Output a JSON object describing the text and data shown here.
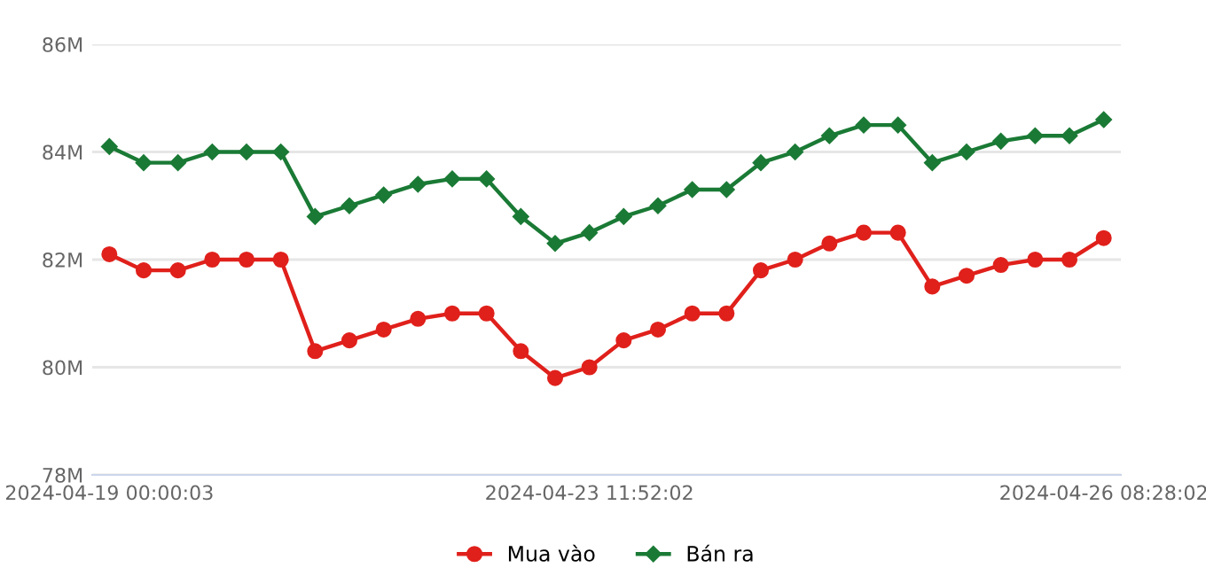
{
  "chart_data": {
    "type": "line",
    "categories": [
      "2024-04-19 00:00:03",
      null,
      null,
      null,
      null,
      null,
      null,
      null,
      null,
      null,
      null,
      null,
      null,
      null,
      "2024-04-23 11:52:02",
      null,
      null,
      null,
      null,
      null,
      null,
      null,
      null,
      null,
      null,
      null,
      null,
      null,
      null,
      "2024-04-26 08:28:02"
    ],
    "series": [
      {
        "name": "Mua vào",
        "color": "#e0201b",
        "marker": "circle",
        "values": [
          82.1,
          81.8,
          81.8,
          82.0,
          82.0,
          82.0,
          80.3,
          80.5,
          80.7,
          80.9,
          81.0,
          81.0,
          80.3,
          79.8,
          80.0,
          80.5,
          80.7,
          81.0,
          81.0,
          81.8,
          82.0,
          82.3,
          82.5,
          82.5,
          81.5,
          81.7,
          81.9,
          82.0,
          82.0,
          82.4
        ]
      },
      {
        "name": "Bán ra",
        "color": "#1a7a35",
        "marker": "diamond",
        "values": [
          84.1,
          83.8,
          83.8,
          84.0,
          84.0,
          84.0,
          82.8,
          83.0,
          83.2,
          83.4,
          83.5,
          83.5,
          82.8,
          82.3,
          82.5,
          82.8,
          83.0,
          83.3,
          83.3,
          83.8,
          84.0,
          84.3,
          84.5,
          84.5,
          83.8,
          84.0,
          84.2,
          84.3,
          84.3,
          84.6
        ]
      }
    ],
    "ylim": [
      78,
      86
    ],
    "yticks": [
      {
        "value": 78,
        "label": "78M"
      },
      {
        "value": 80,
        "label": "80M"
      },
      {
        "value": 82,
        "label": "82M"
      },
      {
        "value": 84,
        "label": "84M"
      },
      {
        "value": 86,
        "label": "86M"
      }
    ],
    "grid": "y",
    "legend": "bottom",
    "line_style": "solid"
  }
}
